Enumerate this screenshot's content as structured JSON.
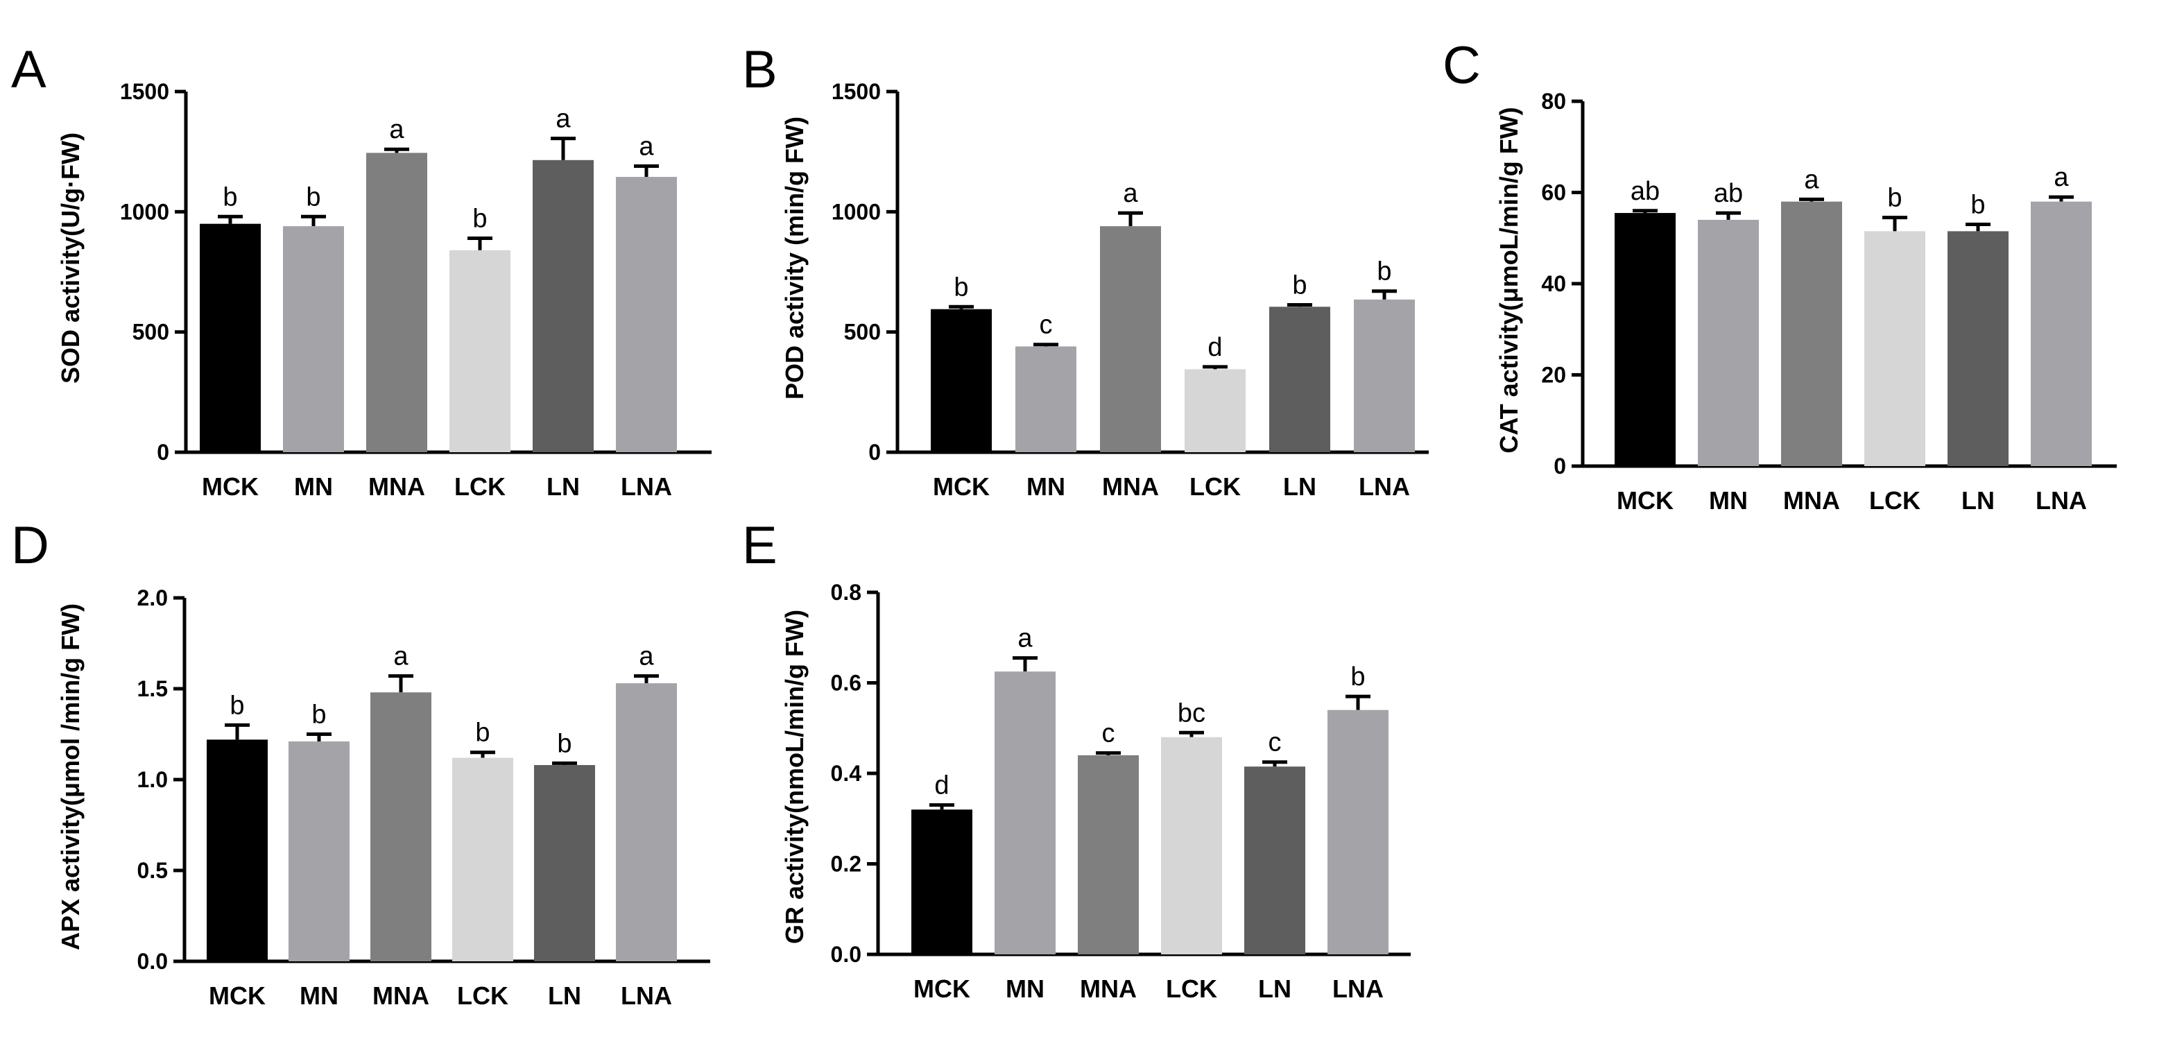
{
  "figure": {
    "colors": {
      "MCK": "#000000",
      "MN": "#a4a4a8",
      "MNA": "#7f7f7f",
      "LCK": "#d6d6d6",
      "LN": "#5e5e5e",
      "LNA": "#a4a4a8"
    }
  },
  "chart_data": [
    {
      "panel": "A",
      "type": "bar",
      "ylabel": "SOD activity(U/g·FW)",
      "categories": [
        "MCK",
        "MN",
        "MNA",
        "LCK",
        "LN",
        "LNA"
      ],
      "values": [
        950,
        940,
        1245,
        840,
        1215,
        1145
      ],
      "errors": [
        30,
        40,
        15,
        50,
        90,
        45
      ],
      "letters": [
        "b",
        "b",
        "a",
        "b",
        "a",
        "a"
      ],
      "ylim": [
        0,
        1500
      ],
      "yticks": [
        0,
        500,
        1000,
        1500
      ],
      "ytick_labels": [
        "0",
        "500",
        "1000",
        "1500"
      ]
    },
    {
      "panel": "B",
      "type": "bar",
      "ylabel": "POD activity (min/g FW)",
      "categories": [
        "MCK",
        "MN",
        "MNA",
        "LCK",
        "LN",
        "LNA"
      ],
      "values": [
        595,
        440,
        940,
        345,
        605,
        635
      ],
      "errors": [
        10,
        8,
        55,
        10,
        8,
        35
      ],
      "letters": [
        "b",
        "c",
        "a",
        "d",
        "b",
        "b"
      ],
      "ylim": [
        0,
        1500
      ],
      "yticks": [
        0,
        500,
        1000,
        1500
      ],
      "ytick_labels": [
        "0",
        "500",
        "1000",
        "1500"
      ]
    },
    {
      "panel": "C",
      "type": "bar",
      "ylabel": "CAT activity(μmoL/min/g FW)",
      "categories": [
        "MCK",
        "MN",
        "MNA",
        "LCK",
        "LN",
        "LNA"
      ],
      "values": [
        55.5,
        54,
        58,
        51.5,
        51.5,
        58
      ],
      "errors": [
        0.5,
        1.5,
        0.5,
        3,
        1.5,
        1
      ],
      "letters": [
        "ab",
        "ab",
        "a",
        "b",
        "b",
        "a"
      ],
      "ylim": [
        0,
        80
      ],
      "yticks": [
        0,
        20,
        40,
        60,
        80
      ],
      "ytick_labels": [
        "0",
        "20",
        "40",
        "60",
        "80"
      ]
    },
    {
      "panel": "D",
      "type": "bar",
      "ylabel": "APX activity(μmol /min/g FW)",
      "categories": [
        "MCK",
        "MN",
        "MNA",
        "LCK",
        "LN",
        "LNA"
      ],
      "values": [
        1.22,
        1.21,
        1.48,
        1.12,
        1.08,
        1.53
      ],
      "errors": [
        0.08,
        0.04,
        0.09,
        0.03,
        0.01,
        0.04
      ],
      "letters": [
        "b",
        "b",
        "a",
        "b",
        "b",
        "a"
      ],
      "ylim": [
        0,
        2.0
      ],
      "yticks": [
        0,
        0.5,
        1.0,
        1.5,
        2.0
      ],
      "ytick_labels": [
        "0.0",
        "0.5",
        "1.0",
        "1.5",
        "2.0"
      ]
    },
    {
      "panel": "E",
      "type": "bar",
      "ylabel": "GR activity(nmoL/min/g FW)",
      "categories": [
        "MCK",
        "MN",
        "MNA",
        "LCK",
        "LN",
        "LNA"
      ],
      "values": [
        0.32,
        0.625,
        0.44,
        0.48,
        0.415,
        0.54
      ],
      "errors": [
        0.01,
        0.03,
        0.005,
        0.01,
        0.01,
        0.03
      ],
      "letters": [
        "d",
        "a",
        "c",
        "bc",
        "c",
        "b"
      ],
      "ylim": [
        0,
        0.8
      ],
      "yticks": [
        0,
        0.2,
        0.4,
        0.6,
        0.8
      ],
      "ytick_labels": [
        "0.0",
        "0.2",
        "0.4",
        "0.6",
        "0.8"
      ]
    }
  ]
}
